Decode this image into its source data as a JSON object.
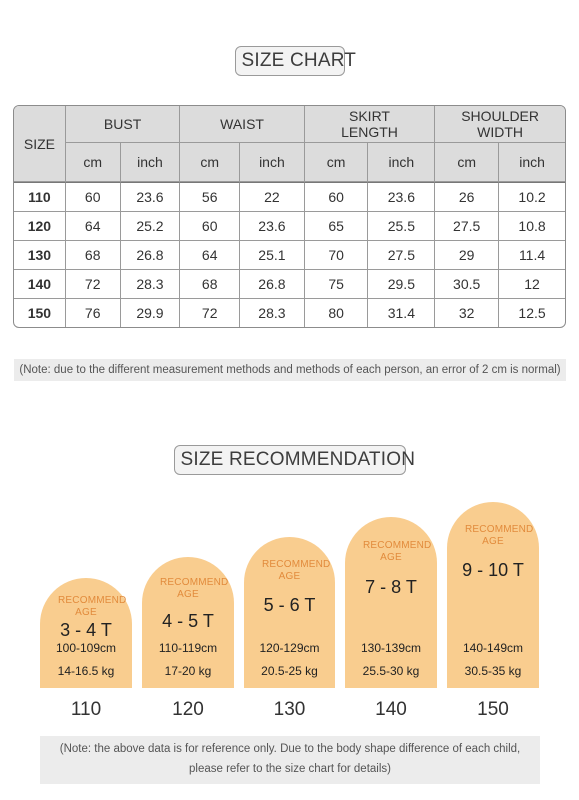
{
  "top_mark": "·",
  "size_chart": {
    "title": "SIZE CHART",
    "headers": {
      "size": "SIZE",
      "groups": [
        "BUST",
        "WAIST",
        "SKIRT LENGTH",
        "SHOULDER WIDTH"
      ],
      "units": [
        "cm",
        "inch",
        "cm",
        "inch",
        "cm",
        "inch",
        "cm",
        "inch"
      ]
    },
    "rows": [
      [
        "110",
        "60",
        "23.6",
        "56",
        "22",
        "60",
        "23.6",
        "26",
        "10.2"
      ],
      [
        "120",
        "64",
        "25.2",
        "60",
        "23.6",
        "65",
        "25.5",
        "27.5",
        "10.8"
      ],
      [
        "130",
        "68",
        "26.8",
        "64",
        "25.1",
        "70",
        "27.5",
        "29",
        "11.4"
      ],
      [
        "140",
        "72",
        "28.3",
        "68",
        "26.8",
        "75",
        "29.5",
        "30.5",
        "12"
      ],
      [
        "150",
        "76",
        "29.9",
        "72",
        "28.3",
        "80",
        "31.4",
        "32",
        "12.5"
      ]
    ],
    "note": "(Note: due to the different measurement methods and methods of each person, an error of 2 cm is normal)"
  },
  "size_recommendation": {
    "title": "SIZE RECOMMENDATION",
    "recommend_label": "RECOMMEND AGE",
    "cards": [
      {
        "age": "3 - 4 T",
        "height_range": "100-109cm",
        "weight": "14-16.5 kg",
        "size": "110"
      },
      {
        "age": "4 - 5 T",
        "height_range": "110-119cm",
        "weight": "17-20 kg",
        "size": "120"
      },
      {
        "age": "5 - 6 T",
        "height_range": "120-129cm",
        "weight": "20.5-25 kg",
        "size": "130"
      },
      {
        "age": "7 - 8 T",
        "height_range": "130-139cm",
        "weight": "25.5-30 kg",
        "size": "140"
      },
      {
        "age": "9 - 10 T",
        "height_range": "140-149cm",
        "weight": "30.5-35 kg",
        "size": "150"
      }
    ],
    "note_line1": "(Note: the above data is for reference only. Due to the body shape difference of each child,",
    "note_line2": "please refer to the size chart for details)"
  },
  "colors": {
    "arch_fill": "#f9cd8f",
    "recommend_text": "#e28b3c",
    "header_fill": "#dcdcdc",
    "note_fill": "#ececec"
  }
}
